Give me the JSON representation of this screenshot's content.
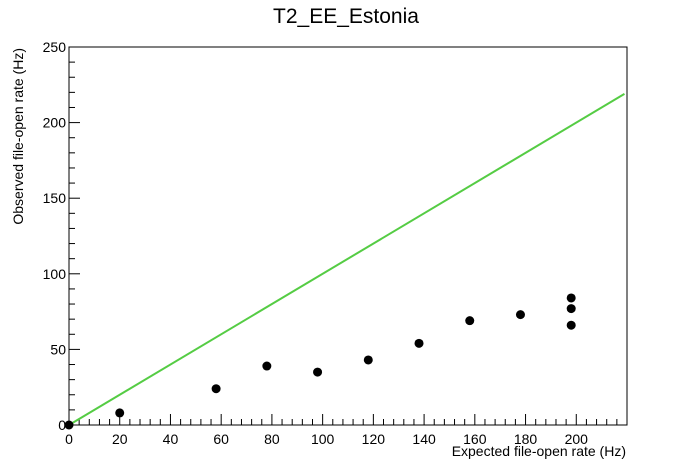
{
  "chart_data": {
    "type": "scatter",
    "title": "T2_EE_Estonia",
    "xlabel": "Expected file-open rate (Hz)",
    "ylabel": "Observed file-open rate (Hz)",
    "xlim": [
      0,
      220
    ],
    "ylim": [
      0,
      250
    ],
    "x_ticks": [
      0,
      20,
      40,
      60,
      80,
      100,
      120,
      140,
      160,
      180,
      200
    ],
    "y_ticks": [
      0,
      50,
      100,
      150,
      200,
      250
    ],
    "grid": false,
    "legend": "none",
    "points": [
      {
        "x": 0,
        "y": 0
      },
      {
        "x": 20,
        "y": 8
      },
      {
        "x": 58,
        "y": 24
      },
      {
        "x": 78,
        "y": 39
      },
      {
        "x": 98,
        "y": 35
      },
      {
        "x": 118,
        "y": 43
      },
      {
        "x": 138,
        "y": 54
      },
      {
        "x": 158,
        "y": 69
      },
      {
        "x": 178,
        "y": 73
      },
      {
        "x": 198,
        "y": 66
      },
      {
        "x": 198,
        "y": 77
      },
      {
        "x": 198,
        "y": 84
      }
    ],
    "reference_line": {
      "x": [
        0,
        219
      ],
      "y": [
        0,
        219
      ],
      "color": "#55cc44"
    },
    "marker_color": "#000000"
  }
}
